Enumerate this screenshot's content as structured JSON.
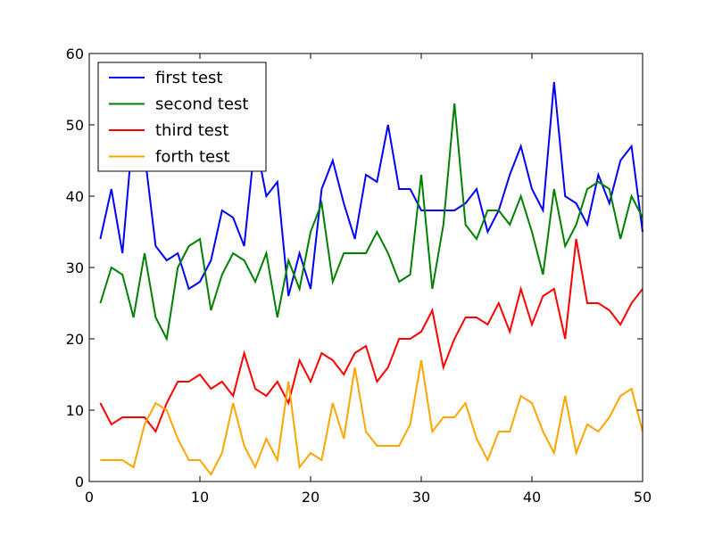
{
  "chart_data": {
    "type": "line",
    "title": "",
    "xlabel": "",
    "ylabel": "",
    "xlim": [
      0,
      50
    ],
    "ylim": [
      0,
      60
    ],
    "xticks": [
      0,
      10,
      20,
      30,
      40,
      50
    ],
    "yticks": [
      0,
      10,
      20,
      30,
      40,
      50,
      60
    ],
    "grid": false,
    "legend_position": "top-left",
    "x": [
      1,
      2,
      3,
      4,
      5,
      6,
      7,
      8,
      9,
      10,
      11,
      12,
      13,
      14,
      15,
      16,
      17,
      18,
      19,
      20,
      21,
      22,
      23,
      24,
      25,
      26,
      27,
      28,
      29,
      30,
      31,
      32,
      33,
      34,
      35,
      36,
      37,
      38,
      39,
      40,
      41,
      42,
      43,
      44,
      45,
      46,
      47,
      48,
      49,
      50
    ],
    "series": [
      {
        "name": "first test",
        "color": "#0000ff",
        "values": [
          34,
          41,
          32,
          50,
          46,
          33,
          31,
          32,
          27,
          28,
          31,
          38,
          37,
          33,
          48,
          40,
          42,
          26,
          32,
          27,
          41,
          45,
          39,
          34,
          43,
          42,
          50,
          41,
          41,
          38,
          38,
          38,
          38,
          39,
          41,
          35,
          38,
          43,
          47,
          41,
          38,
          56,
          40,
          39,
          36,
          43,
          39,
          45,
          47,
          35
        ]
      },
      {
        "name": "second test",
        "color": "#008000",
        "values": [
          25,
          30,
          29,
          23,
          32,
          23,
          20,
          30,
          33,
          34,
          24,
          29,
          32,
          31,
          28,
          32,
          23,
          31,
          27,
          35,
          39,
          28,
          32,
          32,
          32,
          35,
          32,
          28,
          29,
          43,
          27,
          36,
          53,
          36,
          34,
          38,
          38,
          36,
          40,
          35,
          29,
          41,
          33,
          36,
          41,
          42,
          41,
          34,
          40,
          37
        ]
      },
      {
        "name": "third test",
        "color": "#ff0000",
        "values": [
          11,
          8,
          9,
          9,
          9,
          7,
          11,
          14,
          14,
          15,
          13,
          14,
          12,
          18,
          13,
          12,
          14,
          11,
          17,
          14,
          18,
          17,
          15,
          18,
          19,
          14,
          16,
          20,
          20,
          21,
          24,
          16,
          20,
          23,
          23,
          22,
          25,
          21,
          27,
          22,
          26,
          27,
          20,
          34,
          25,
          25,
          24,
          22,
          25,
          27
        ]
      },
      {
        "name": "forth test",
        "color": "#ffa500",
        "values": [
          3,
          3,
          3,
          2,
          8,
          11,
          10,
          6,
          3,
          3,
          1,
          4,
          11,
          5,
          2,
          6,
          3,
          14,
          2,
          4,
          3,
          11,
          6,
          16,
          7,
          5,
          5,
          5,
          8,
          17,
          7,
          9,
          9,
          11,
          6,
          3,
          7,
          7,
          12,
          11,
          7,
          4,
          12,
          4,
          8,
          7,
          9,
          12,
          13,
          7
        ]
      }
    ]
  }
}
